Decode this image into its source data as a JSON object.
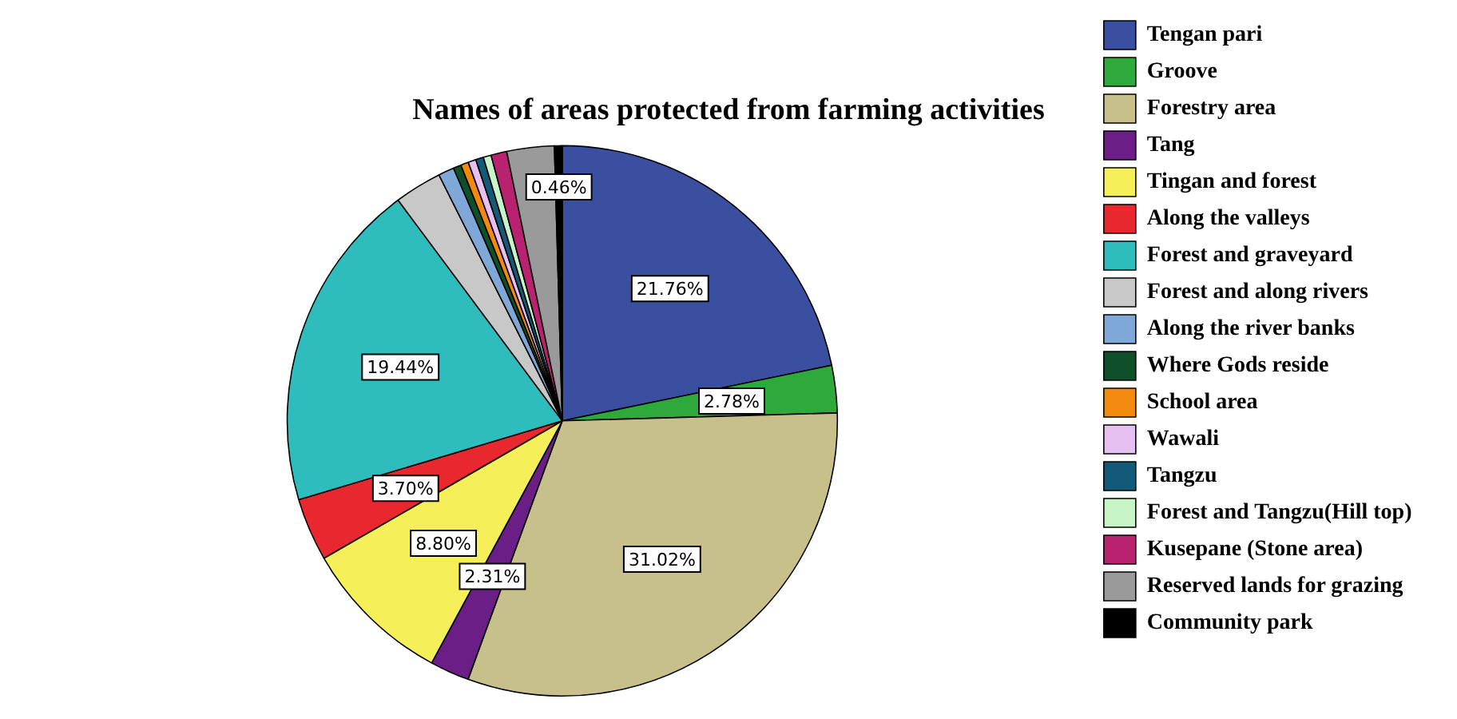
{
  "chart_data": {
    "type": "pie",
    "title": "Names of areas protected from farming activities",
    "categories": [
      "Tengan pari",
      "Groove",
      "Forestry area",
      "Tang",
      "Tingan and forest",
      "Along the valleys",
      "Forest and graveyard",
      "Forest and along rivers",
      "Along the river banks",
      "Where Gods reside",
      "School area",
      "Wawali",
      "Tangzu",
      "Forest and Tangzu(Hill top)",
      "Kusepane (Stone area)",
      "Reserved lands for grazing",
      "Community park"
    ],
    "values": [
      21.76,
      2.78,
      31.02,
      2.31,
      8.8,
      3.7,
      19.44,
      2.78,
      0.93,
      0.46,
      0.46,
      0.46,
      0.46,
      0.46,
      0.93,
      2.78,
      0.46
    ],
    "colors": [
      "#3a4fa0",
      "#2eaa3c",
      "#c8c08a",
      "#6b1f86",
      "#f5f05a",
      "#e8282e",
      "#2fbcbc",
      "#c8c8c8",
      "#7fa7d8",
      "#0f4f2a",
      "#f28a10",
      "#e6c0f0",
      "#125a78",
      "#c8f5c8",
      "#b8226e",
      "#9a9a9a",
      "#000000"
    ],
    "value_labels": [
      "21.76%",
      "2.78%",
      "31.02%",
      "2.31%",
      "8.80%",
      "3.70%",
      "19.44%",
      null,
      null,
      null,
      null,
      null,
      null,
      null,
      null,
      null,
      "0.46%"
    ],
    "legend": "right"
  }
}
